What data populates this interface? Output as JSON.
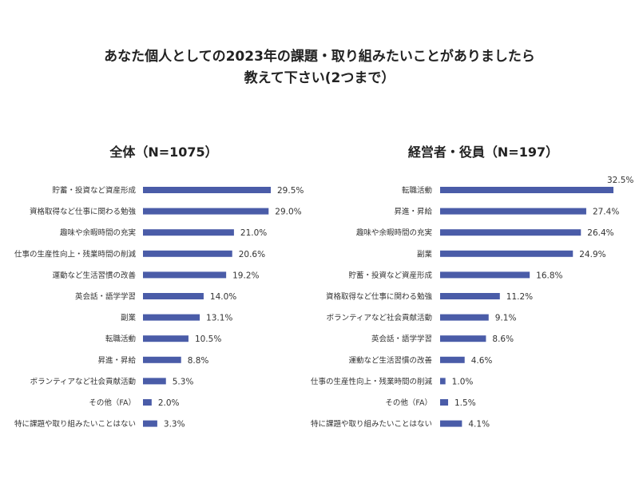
{
  "title": {
    "line1": "あなた個人としての2023年の課題・取り組みたいことがありましたら",
    "line2": "教えて下さい(2つまで）"
  },
  "colors": {
    "bar": "#4a5ca8"
  },
  "chart_data": [
    {
      "type": "bar",
      "orientation": "horizontal",
      "title": "全体（N=1075）",
      "categories": [
        "貯蓄・投資など資産形成",
        "資格取得など仕事に関わる勉強",
        "趣味や余暇時間の充実",
        "仕事の生産性向上・残業時間の削減",
        "運動など生活習慣の改善",
        "英会話・語学学習",
        "副業",
        "転職活動",
        "昇進・昇給",
        "ボランティアなど社会貢献活動",
        "その他（FA）",
        "特に課題や取り組みたいことはない"
      ],
      "values": [
        29.5,
        29.0,
        21.0,
        20.6,
        19.2,
        14.0,
        13.1,
        10.5,
        8.8,
        5.3,
        2.0,
        3.3
      ],
      "labels": [
        "29.5%",
        "29.0%",
        "21.0%",
        "20.6%",
        "19.2%",
        "14.0%",
        "13.1%",
        "10.5%",
        "8.8%",
        "5.3%",
        "2.0%",
        "3.3%"
      ],
      "unit": "%",
      "xlim": [
        0,
        40
      ]
    },
    {
      "type": "bar",
      "orientation": "horizontal",
      "title": "経営者・役員（N=197）",
      "categories": [
        "転職活動",
        "昇進・昇給",
        "趣味や余暇時間の充実",
        "副業",
        "貯蓄・投資など資産形成",
        "資格取得など仕事に関わる勉強",
        "ボランティアなど社会貢献活動",
        "英会話・語学学習",
        "運動など生活習慣の改善",
        "仕事の生産性向上・残業時間の削減",
        "その他（FA）",
        "特に課題や取り組みたいことはない"
      ],
      "values": [
        32.5,
        27.4,
        26.4,
        24.9,
        16.8,
        11.2,
        9.1,
        8.6,
        4.6,
        1.0,
        1.5,
        4.1
      ],
      "labels": [
        "32.5%",
        "27.4%",
        "26.4%",
        "24.9%",
        "16.8%",
        "11.2%",
        "9.1%",
        "8.6%",
        "4.6%",
        "1.0%",
        "1.5%",
        "4.1%"
      ],
      "unit": "%",
      "xlim": [
        0,
        40
      ]
    }
  ]
}
